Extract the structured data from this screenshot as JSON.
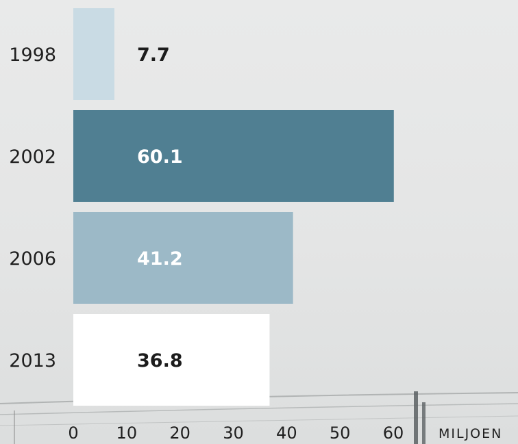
{
  "chart_data": {
    "type": "bar",
    "orientation": "horizontal",
    "categories": [
      "1998",
      "2002",
      "2006",
      "2013"
    ],
    "values": [
      7.7,
      60.1,
      41.2,
      36.8
    ],
    "value_labels": [
      "7.7",
      "60.1",
      "41.2",
      "36.8"
    ],
    "bar_colors": [
      "#c9dbe4",
      "#507f92",
      "#9cb9c7",
      "#ffffff"
    ],
    "value_label_colors": [
      "#1c1c1c",
      "#ffffff",
      "#ffffff",
      "#1c1c1c"
    ],
    "x_ticks": [
      0,
      10,
      20,
      30,
      40,
      50,
      60
    ],
    "x_unit": "MILJOEN",
    "xlim": [
      0,
      60
    ],
    "grid": false
  }
}
